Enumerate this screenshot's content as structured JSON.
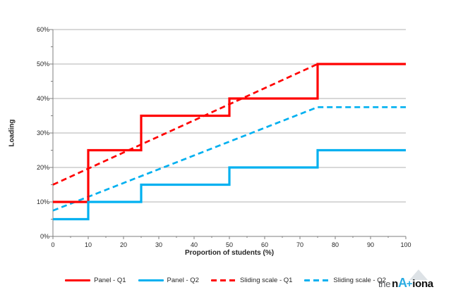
{
  "chart_data": {
    "type": "line",
    "xlabel": "Proportion of students (%)",
    "ylabel": "Loading",
    "xlim": [
      0,
      100
    ],
    "ylim": [
      0,
      60
    ],
    "x_ticks": [
      0,
      10,
      20,
      30,
      40,
      50,
      60,
      70,
      80,
      90,
      100
    ],
    "y_ticks": [
      0,
      10,
      20,
      30,
      40,
      50,
      60
    ],
    "y_tick_suffix": "%",
    "x_minor_step": 5,
    "y_minor_step": 5,
    "grid": "horizontal",
    "legend_position": "bottom",
    "axis_color": "#7f7f7f",
    "grid_color": "#b0b0b0",
    "series": [
      {
        "name": "Panel - Q1",
        "color": "#ff0000",
        "style": "solid",
        "points": [
          [
            0,
            10
          ],
          [
            10,
            10
          ],
          [
            10,
            25
          ],
          [
            25,
            25
          ],
          [
            25,
            35
          ],
          [
            50,
            35
          ],
          [
            50,
            40
          ],
          [
            75,
            40
          ],
          [
            75,
            50
          ],
          [
            100,
            50
          ]
        ]
      },
      {
        "name": "Panel - Q2",
        "color": "#00b0f0",
        "style": "solid",
        "points": [
          [
            0,
            5
          ],
          [
            10,
            5
          ],
          [
            10,
            10
          ],
          [
            25,
            10
          ],
          [
            25,
            15
          ],
          [
            50,
            15
          ],
          [
            50,
            20
          ],
          [
            75,
            20
          ],
          [
            75,
            25
          ],
          [
            100,
            25
          ]
        ]
      },
      {
        "name": "Sliding scale - Q1",
        "color": "#ff0000",
        "style": "dashed",
        "points": [
          [
            0,
            15
          ],
          [
            75,
            50
          ],
          [
            100,
            50
          ]
        ]
      },
      {
        "name": "Sliding scale - Q2",
        "color": "#00b0f0",
        "style": "dashed",
        "points": [
          [
            0,
            7.5
          ],
          [
            75,
            37.5
          ],
          [
            100,
            37.5
          ]
        ]
      }
    ]
  },
  "logo": {
    "word_start": "the",
    "letter_n": "n",
    "letter_a": "A",
    "plus": "+",
    "word_end": "iona"
  }
}
